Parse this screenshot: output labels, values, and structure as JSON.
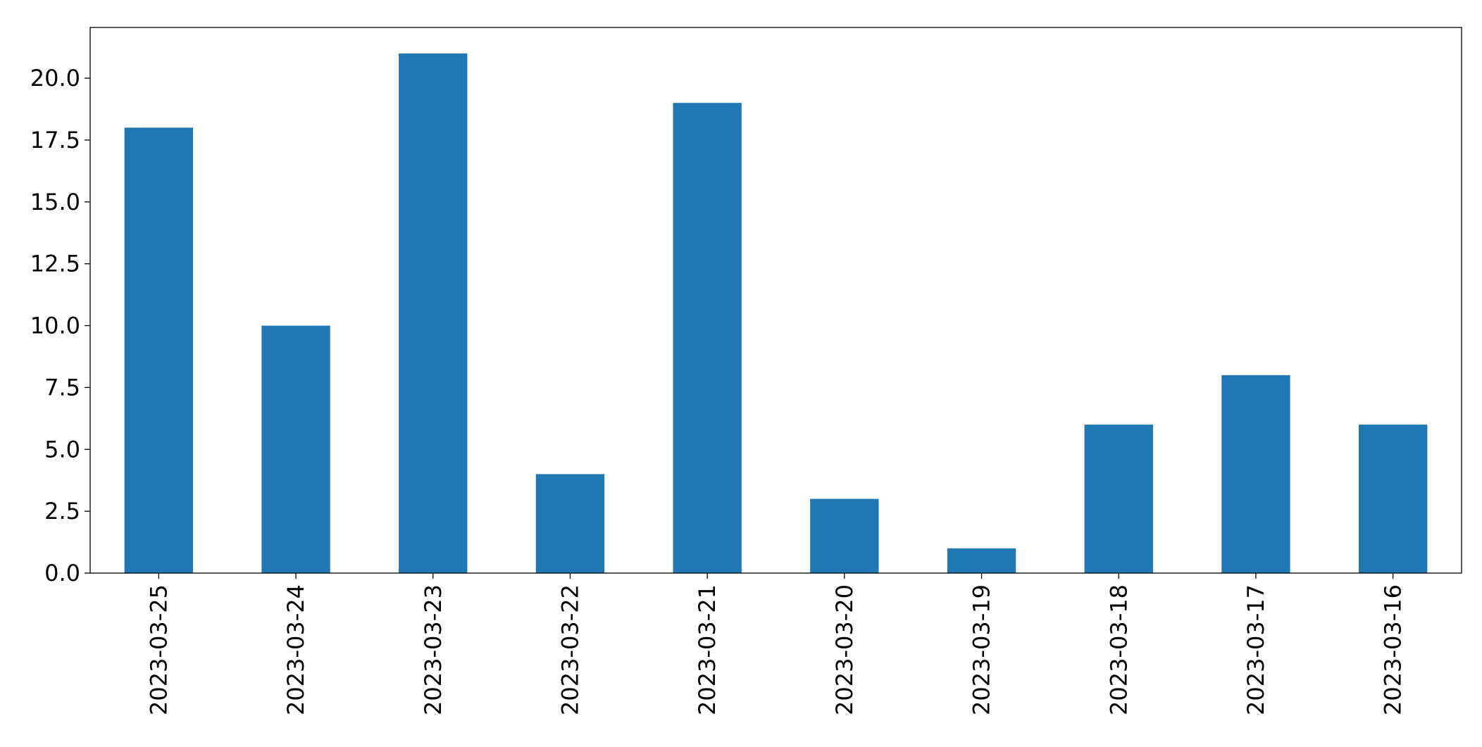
{
  "chart_data": {
    "type": "bar",
    "title": "",
    "xlabel": "",
    "ylabel": "",
    "categories": [
      "2023-03-25",
      "2023-03-24",
      "2023-03-23",
      "2023-03-22",
      "2023-03-21",
      "2023-03-20",
      "2023-03-19",
      "2023-03-18",
      "2023-03-17",
      "2023-03-16"
    ],
    "values": [
      18,
      10,
      21,
      4,
      19,
      3,
      1,
      6,
      8,
      6
    ],
    "ylim": [
      0,
      22.05
    ],
    "yticks": [
      0,
      2.5,
      5,
      7.5,
      10,
      12.5,
      15,
      17.5,
      20
    ],
    "ytick_labels": [
      "0.0",
      "2.5",
      "5.0",
      "7.5",
      "10.0",
      "12.5",
      "15.0",
      "17.5",
      "20.0"
    ],
    "grid": false,
    "legend": "none",
    "bar_color": "#1f77b4",
    "axis_color": "#000000"
  }
}
